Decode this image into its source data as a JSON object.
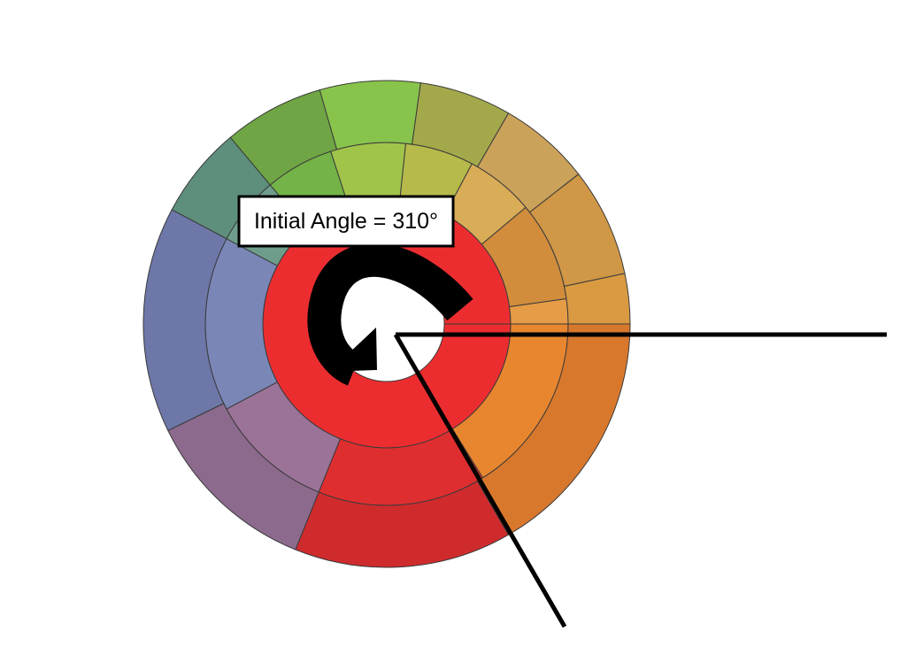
{
  "annotation": {
    "text": "Initial Angle = 310°"
  },
  "diagram": {
    "type": "sunburst",
    "initial_angle_deg": 310,
    "colors": {
      "center_ring": "#ec2d30",
      "outline": "#3a3a3a",
      "pointer": "#000000"
    },
    "rings": [
      {
        "name": "ring-2",
        "segments": [
          {
            "a0": 0,
            "a1": 8,
            "r0": 0,
            "color": "#e69c47"
          },
          {
            "a0": 8,
            "a1": 40,
            "r0": 0,
            "color": "#d18d3c"
          },
          {
            "a0": 40,
            "a1": 62,
            "r0": 0,
            "color": "#d9ac57"
          },
          {
            "a0": 62,
            "a1": 84,
            "r0": 0,
            "color": "#b6ba4a"
          },
          {
            "a0": 84,
            "a1": 108,
            "r0": 0,
            "color": "#a0c34a"
          },
          {
            "a0": 108,
            "a1": 130,
            "r0": 0,
            "color": "#73b347"
          },
          {
            "a0": 130,
            "a1": 152,
            "r0": 0,
            "color": "#6e9e8b"
          },
          {
            "a0": 152,
            "a1": 208,
            "r0": 0,
            "color": "#7a86b6"
          },
          {
            "a0": 208,
            "a1": 248,
            "r0": 0,
            "color": "#9b7398"
          },
          {
            "a0": 248,
            "a1": 302,
            "r0": 0,
            "color": "#de2e2f"
          },
          {
            "a0": 302,
            "a1": 360,
            "r0": 0,
            "color": "#e7862f"
          }
        ]
      },
      {
        "name": "ring-3",
        "segments": [
          {
            "a0": 0,
            "a1": 12,
            "r0": 1,
            "color": "#d99a42"
          },
          {
            "a0": 12,
            "a1": 38,
            "r0": 1,
            "color": "#cf9746"
          },
          {
            "a0": 38,
            "a1": 60,
            "r0": 1,
            "color": "#cba25a"
          },
          {
            "a0": 60,
            "a1": 82,
            "r0": 1,
            "color": "#a3a84b"
          },
          {
            "a0": 82,
            "a1": 106,
            "r0": 1,
            "color": "#88c34c"
          },
          {
            "a0": 106,
            "a1": 130,
            "r0": 1,
            "color": "#6fa544"
          },
          {
            "a0": 130,
            "a1": 152,
            "r0": 1,
            "color": "#5e8f7c"
          },
          {
            "a0": 152,
            "a1": 206,
            "r0": 1,
            "color": "#6d77a8"
          },
          {
            "a0": 206,
            "a1": 248,
            "r0": 1,
            "color": "#8c6a8d"
          },
          {
            "a0": 248,
            "a1": 300,
            "r0": 1,
            "color": "#cf2b2d"
          },
          {
            "a0": 300,
            "a1": 360,
            "r0": 1,
            "color": "#d8782d"
          }
        ]
      }
    ]
  }
}
